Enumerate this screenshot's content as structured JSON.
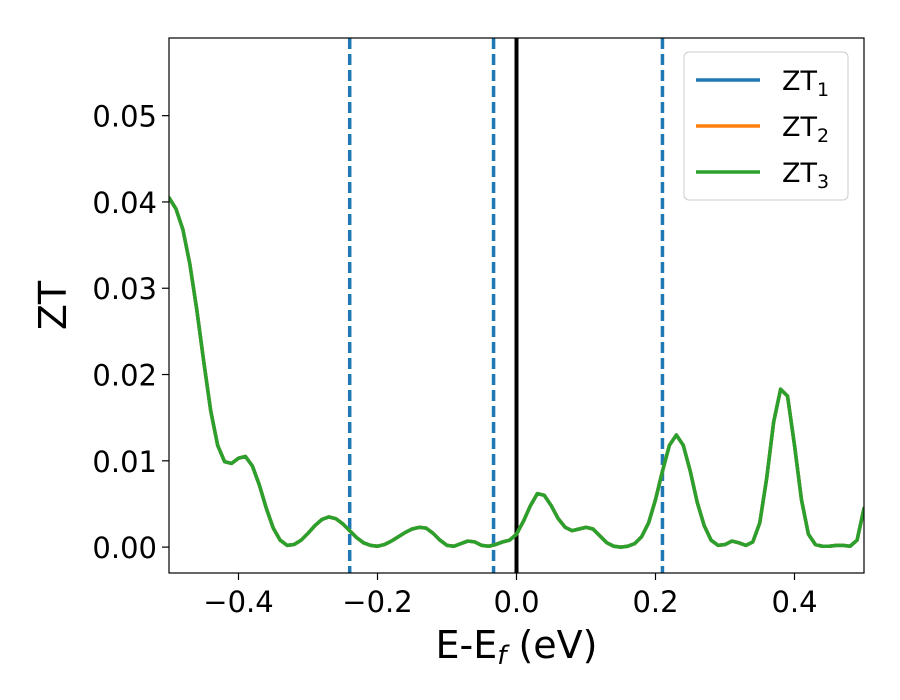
{
  "chart_data": {
    "type": "line",
    "xlabel": "E-E",
    "xlabel_sub": "f",
    "xlabel_unit": " (eV)",
    "ylabel": "ZT",
    "xlim": [
      -0.5,
      0.5
    ],
    "ylim": [
      -0.003,
      0.059
    ],
    "xticks": [
      -0.4,
      -0.2,
      0.0,
      0.2,
      0.4
    ],
    "xtick_labels": [
      "−0.4",
      "−0.2",
      "0.0",
      "0.2",
      "0.4"
    ],
    "yticks": [
      0.0,
      0.01,
      0.02,
      0.03,
      0.04,
      0.05
    ],
    "ytick_labels": [
      "0.00",
      "0.01",
      "0.02",
      "0.03",
      "0.04",
      "0.05"
    ],
    "grid": false,
    "legend_position": "top-right",
    "vlines": [
      {
        "x": -0.24,
        "style": "dashed",
        "color": "#1f77b4"
      },
      {
        "x": -0.033,
        "style": "dashed",
        "color": "#1f77b4"
      },
      {
        "x": 0.21,
        "style": "dashed",
        "color": "#1f77b4"
      },
      {
        "x": 0.0,
        "style": "solid",
        "color": "#000000"
      }
    ],
    "series": [
      {
        "name": "ZT",
        "sub": "1",
        "color": "#1f77b4",
        "x": [
          -0.5,
          -0.49,
          -0.48,
          -0.47,
          -0.46,
          -0.45,
          -0.44,
          -0.43,
          -0.42,
          -0.41,
          -0.4,
          -0.39,
          -0.38,
          -0.37,
          -0.36,
          -0.35,
          -0.34,
          -0.33,
          -0.32,
          -0.31,
          -0.3,
          -0.29,
          -0.28,
          -0.27,
          -0.26,
          -0.25,
          -0.24,
          -0.23,
          -0.22,
          -0.21,
          -0.2,
          -0.19,
          -0.18,
          -0.17,
          -0.16,
          -0.15,
          -0.14,
          -0.13,
          -0.12,
          -0.11,
          -0.1,
          -0.09,
          -0.08,
          -0.07,
          -0.06,
          -0.05,
          -0.04,
          -0.03,
          -0.02,
          -0.01,
          0.0,
          0.01,
          0.02,
          0.03,
          0.04,
          0.05,
          0.06,
          0.07,
          0.08,
          0.09,
          0.1,
          0.11,
          0.12,
          0.13,
          0.14,
          0.15,
          0.16,
          0.17,
          0.18,
          0.19,
          0.2,
          0.21,
          0.22,
          0.23,
          0.24,
          0.25,
          0.26,
          0.27,
          0.28,
          0.29,
          0.3,
          0.31,
          0.32,
          0.33,
          0.34,
          0.35,
          0.36,
          0.37,
          0.38,
          0.39,
          0.4,
          0.41,
          0.42,
          0.43,
          0.44,
          0.45,
          0.46,
          0.47,
          0.48,
          0.49,
          0.5
        ],
        "y": [
          0.0405,
          0.0392,
          0.0368,
          0.0328,
          0.0275,
          0.0215,
          0.0158,
          0.0118,
          0.0099,
          0.0097,
          0.0103,
          0.0105,
          0.0094,
          0.0072,
          0.0045,
          0.0022,
          0.0008,
          0.0002,
          0.0003,
          0.0008,
          0.0016,
          0.0025,
          0.0032,
          0.0035,
          0.0033,
          0.0027,
          0.0019,
          0.0011,
          0.0005,
          0.0002,
          0.0001,
          0.0003,
          0.0007,
          0.0012,
          0.0017,
          0.0021,
          0.0023,
          0.0022,
          0.0016,
          0.0008,
          0.0002,
          0.0001,
          0.0004,
          0.0007,
          0.0006,
          0.0002,
          0.0001,
          0.0003,
          0.0006,
          0.0008,
          0.0015,
          0.003,
          0.0048,
          0.0062,
          0.006,
          0.0048,
          0.0033,
          0.0023,
          0.0019,
          0.0021,
          0.0023,
          0.0021,
          0.0013,
          0.0005,
          0.0001,
          0.0,
          0.0001,
          0.0004,
          0.0012,
          0.0028,
          0.0055,
          0.0088,
          0.0118,
          0.013,
          0.0118,
          0.0088,
          0.0052,
          0.0025,
          0.0008,
          0.0002,
          0.0003,
          0.0007,
          0.0005,
          0.0002,
          0.0006,
          0.0028,
          0.008,
          0.0145,
          0.0183,
          0.0175,
          0.0118,
          0.0055,
          0.0015,
          0.0003,
          0.0001,
          0.0001,
          0.0002,
          0.0002,
          0.0001,
          0.0008,
          0.0045
        ]
      },
      {
        "name": "ZT",
        "sub": "2",
        "color": "#ff7f0e",
        "x": [
          -0.5,
          -0.49,
          -0.48,
          -0.47,
          -0.46,
          -0.45,
          -0.44,
          -0.43,
          -0.42,
          -0.41,
          -0.4,
          -0.39,
          -0.38,
          -0.37,
          -0.36,
          -0.35,
          -0.34,
          -0.33,
          -0.32,
          -0.31,
          -0.3,
          -0.29,
          -0.28,
          -0.27,
          -0.26,
          -0.25,
          -0.24,
          -0.23,
          -0.22,
          -0.21,
          -0.2,
          -0.19,
          -0.18,
          -0.17,
          -0.16,
          -0.15,
          -0.14,
          -0.13,
          -0.12,
          -0.11,
          -0.1,
          -0.09,
          -0.08,
          -0.07,
          -0.06,
          -0.05,
          -0.04,
          -0.03,
          -0.02,
          -0.01,
          0.0,
          0.01,
          0.02,
          0.03,
          0.04,
          0.05,
          0.06,
          0.07,
          0.08,
          0.09,
          0.1,
          0.11,
          0.12,
          0.13,
          0.14,
          0.15,
          0.16,
          0.17,
          0.18,
          0.19,
          0.2,
          0.21,
          0.22,
          0.23,
          0.24,
          0.25,
          0.26,
          0.27,
          0.28,
          0.29,
          0.3,
          0.31,
          0.32,
          0.33,
          0.34,
          0.35,
          0.36,
          0.37,
          0.38,
          0.39,
          0.4,
          0.41,
          0.42,
          0.43,
          0.44,
          0.45,
          0.46,
          0.47,
          0.48,
          0.49,
          0.5
        ],
        "y": [
          0.0405,
          0.0392,
          0.0368,
          0.0328,
          0.0275,
          0.0215,
          0.0158,
          0.0118,
          0.0099,
          0.0097,
          0.0103,
          0.0105,
          0.0094,
          0.0072,
          0.0045,
          0.0022,
          0.0008,
          0.0002,
          0.0003,
          0.0008,
          0.0016,
          0.0025,
          0.0032,
          0.0035,
          0.0033,
          0.0027,
          0.0019,
          0.0011,
          0.0005,
          0.0002,
          0.0001,
          0.0003,
          0.0007,
          0.0012,
          0.0017,
          0.0021,
          0.0023,
          0.0022,
          0.0016,
          0.0008,
          0.0002,
          0.0001,
          0.0004,
          0.0007,
          0.0006,
          0.0002,
          0.0001,
          0.0003,
          0.0006,
          0.0008,
          0.0015,
          0.003,
          0.0048,
          0.0062,
          0.006,
          0.0048,
          0.0033,
          0.0023,
          0.0019,
          0.0021,
          0.0023,
          0.0021,
          0.0013,
          0.0005,
          0.0001,
          0.0,
          0.0001,
          0.0004,
          0.0012,
          0.0028,
          0.0055,
          0.0088,
          0.0118,
          0.013,
          0.0118,
          0.0088,
          0.0052,
          0.0025,
          0.0008,
          0.0002,
          0.0003,
          0.0007,
          0.0005,
          0.0002,
          0.0006,
          0.0028,
          0.008,
          0.0145,
          0.0183,
          0.0175,
          0.0118,
          0.0055,
          0.0015,
          0.0003,
          0.0001,
          0.0001,
          0.0002,
          0.0002,
          0.0001,
          0.0008,
          0.0045
        ]
      },
      {
        "name": "ZT",
        "sub": "3",
        "color": "#2ca02c",
        "x": [
          -0.5,
          -0.49,
          -0.48,
          -0.47,
          -0.46,
          -0.45,
          -0.44,
          -0.43,
          -0.42,
          -0.41,
          -0.4,
          -0.39,
          -0.38,
          -0.37,
          -0.36,
          -0.35,
          -0.34,
          -0.33,
          -0.32,
          -0.31,
          -0.3,
          -0.29,
          -0.28,
          -0.27,
          -0.26,
          -0.25,
          -0.24,
          -0.23,
          -0.22,
          -0.21,
          -0.2,
          -0.19,
          -0.18,
          -0.17,
          -0.16,
          -0.15,
          -0.14,
          -0.13,
          -0.12,
          -0.11,
          -0.1,
          -0.09,
          -0.08,
          -0.07,
          -0.06,
          -0.05,
          -0.04,
          -0.03,
          -0.02,
          -0.01,
          0.0,
          0.01,
          0.02,
          0.03,
          0.04,
          0.05,
          0.06,
          0.07,
          0.08,
          0.09,
          0.1,
          0.11,
          0.12,
          0.13,
          0.14,
          0.15,
          0.16,
          0.17,
          0.18,
          0.19,
          0.2,
          0.21,
          0.22,
          0.23,
          0.24,
          0.25,
          0.26,
          0.27,
          0.28,
          0.29,
          0.3,
          0.31,
          0.32,
          0.33,
          0.34,
          0.35,
          0.36,
          0.37,
          0.38,
          0.39,
          0.4,
          0.41,
          0.42,
          0.43,
          0.44,
          0.45,
          0.46,
          0.47,
          0.48,
          0.49,
          0.5
        ],
        "y": [
          0.0405,
          0.0392,
          0.0368,
          0.0328,
          0.0275,
          0.0215,
          0.0158,
          0.0118,
          0.0099,
          0.0097,
          0.0103,
          0.0105,
          0.0094,
          0.0072,
          0.0045,
          0.0022,
          0.0008,
          0.0002,
          0.0003,
          0.0008,
          0.0016,
          0.0025,
          0.0032,
          0.0035,
          0.0033,
          0.0027,
          0.0019,
          0.0011,
          0.0005,
          0.0002,
          0.0001,
          0.0003,
          0.0007,
          0.0012,
          0.0017,
          0.0021,
          0.0023,
          0.0022,
          0.0016,
          0.0008,
          0.0002,
          0.0001,
          0.0004,
          0.0007,
          0.0006,
          0.0002,
          0.0001,
          0.0003,
          0.0006,
          0.0008,
          0.0015,
          0.003,
          0.0048,
          0.0062,
          0.006,
          0.0048,
          0.0033,
          0.0023,
          0.0019,
          0.0021,
          0.0023,
          0.0021,
          0.0013,
          0.0005,
          0.0001,
          0.0,
          0.0001,
          0.0004,
          0.0012,
          0.0028,
          0.0055,
          0.0088,
          0.0118,
          0.013,
          0.0118,
          0.0088,
          0.0052,
          0.0025,
          0.0008,
          0.0002,
          0.0003,
          0.0007,
          0.0005,
          0.0002,
          0.0006,
          0.0028,
          0.008,
          0.0145,
          0.0183,
          0.0175,
          0.0118,
          0.0055,
          0.0015,
          0.0003,
          0.0001,
          0.0001,
          0.0002,
          0.0002,
          0.0001,
          0.0008,
          0.0045
        ]
      }
    ]
  }
}
